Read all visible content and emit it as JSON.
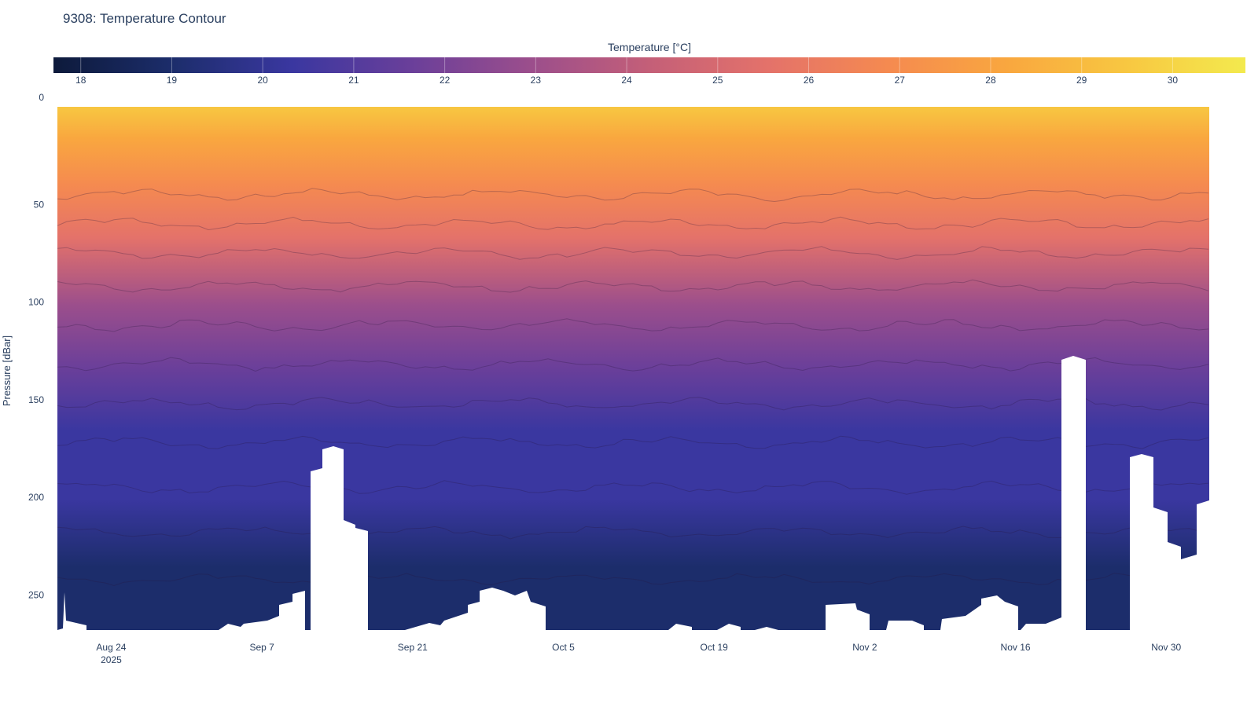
{
  "chart_data": {
    "type": "heatmap",
    "title": "9308: Temperature Contour",
    "colorbar": {
      "title": "Temperature [°C]",
      "ticks": [
        "18",
        "19",
        "20",
        "21",
        "22",
        "23",
        "24",
        "25",
        "26",
        "27",
        "28",
        "29",
        "30"
      ],
      "range": [
        17.7,
        30.8
      ],
      "colorscale": [
        "#0d1a3b",
        "#1c2d6b",
        "#3a37a0",
        "#6a3f9a",
        "#9b4e8c",
        "#c45f78",
        "#e4726a",
        "#f58a50",
        "#f9a73f",
        "#f8c741",
        "#f3ea4e"
      ]
    },
    "yaxis": {
      "label": "Pressure [dBar]",
      "ticks": [
        "0",
        "50",
        "100",
        "150",
        "200",
        "250"
      ],
      "range": [
        268,
        0
      ]
    },
    "xaxis": {
      "ticks": [
        "Aug 24",
        "Sep 7",
        "Sep 21",
        "Oct 5",
        "Oct 19",
        "Nov 2",
        "Nov 16",
        "Nov 30"
      ],
      "year_label": "2025",
      "range": [
        "2025-08-19",
        "2025-12-04"
      ]
    },
    "surface_layer_temp_c": 28.5,
    "bottom_layer_temp_c": 19.2,
    "grid": false,
    "legend": "colorbar-top"
  }
}
